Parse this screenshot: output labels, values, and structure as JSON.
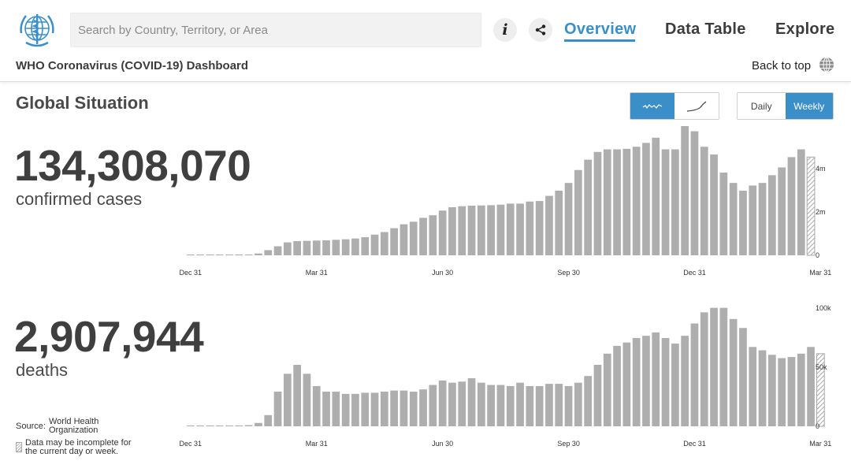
{
  "header": {
    "search_placeholder": "Search by Country, Territory, or Area",
    "info_label": "i",
    "nav": [
      {
        "label": "Overview",
        "active": true
      },
      {
        "label": "Data Table",
        "active": false
      },
      {
        "label": "Explore",
        "active": false
      }
    ],
    "accent_color": "#3a8fc9"
  },
  "subbar": {
    "title": "WHO Coronavirus (COVID-19) Dashboard",
    "back_to_top": "Back to top"
  },
  "section": {
    "title": "Global Situation",
    "chart_style_toggle": [
      "bar-wave-icon",
      "cumulative-curve-icon"
    ],
    "period_toggle": {
      "daily": "Daily",
      "weekly": "Weekly",
      "selected": "Weekly"
    }
  },
  "cases": {
    "value": "134,308,070",
    "label": "confirmed cases"
  },
  "deaths": {
    "value": "2,907,944",
    "label": "deaths"
  },
  "footer": {
    "source_label": "Source:",
    "source_value": "World Health Organization",
    "note": "Data may be incomplete for the current day or week."
  },
  "chart_data": [
    {
      "type": "bar",
      "series": [
        {
          "values": [
            1000,
            3000,
            5000,
            6000,
            8000,
            10000,
            20000,
            70000,
            200000,
            350000,
            500000,
            550000,
            560000,
            570000,
            580000,
            600000,
            620000,
            650000,
            700000,
            800000,
            900000,
            1050000,
            1200000,
            1300000,
            1450000,
            1550000,
            1730000,
            1860000,
            1900000,
            1920000,
            1930000,
            1940000,
            1960000,
            2000000,
            2000000,
            2080000,
            2100000,
            2300000,
            2500000,
            2800000,
            3300000,
            3700000,
            4000000,
            4100000,
            4100000,
            4120000,
            4200000,
            4350000,
            4550000,
            4100000,
            4100000,
            5000000,
            4800000,
            4200000,
            3900000,
            3200000,
            2800000,
            2500000,
            2700000,
            2800000,
            3100000,
            3400000,
            3800000,
            4100000,
            3800000
          ]
        }
      ],
      "x_ticks": [
        "Dec 31",
        "Mar 31",
        "Jun 30",
        "Sep 30",
        "Dec 31",
        "Mar 31"
      ],
      "y_ticks": [
        "0",
        "2m",
        "4m"
      ],
      "ylim": [
        0,
        5000000
      ],
      "last_bar_incomplete": true
    },
    {
      "type": "bar",
      "series": [
        {
          "values": [
            50,
            100,
            200,
            300,
            400,
            600,
            1000,
            3000,
            10000,
            31000,
            47000,
            55000,
            47000,
            36000,
            31000,
            31000,
            29000,
            29000,
            30000,
            30000,
            31000,
            32000,
            32000,
            31000,
            33000,
            37000,
            41000,
            39000,
            40000,
            43000,
            39000,
            37000,
            37000,
            36000,
            39000,
            36000,
            36000,
            38000,
            38000,
            36000,
            39000,
            45000,
            55000,
            65000,
            72000,
            75000,
            79000,
            81000,
            84000,
            79000,
            74000,
            81000,
            92000,
            102000,
            106000,
            106000,
            96000,
            88000,
            71000,
            68000,
            64000,
            61000,
            62000,
            65000,
            71000,
            65000
          ]
        }
      ],
      "x_ticks": [
        "Dec 31",
        "Mar 31",
        "Jun 30",
        "Sep 30",
        "Dec 31",
        "Mar 31"
      ],
      "y_ticks": [
        "0",
        "50k",
        "100k"
      ],
      "ylim": [
        0,
        110000
      ],
      "last_bar_incomplete": true
    }
  ]
}
